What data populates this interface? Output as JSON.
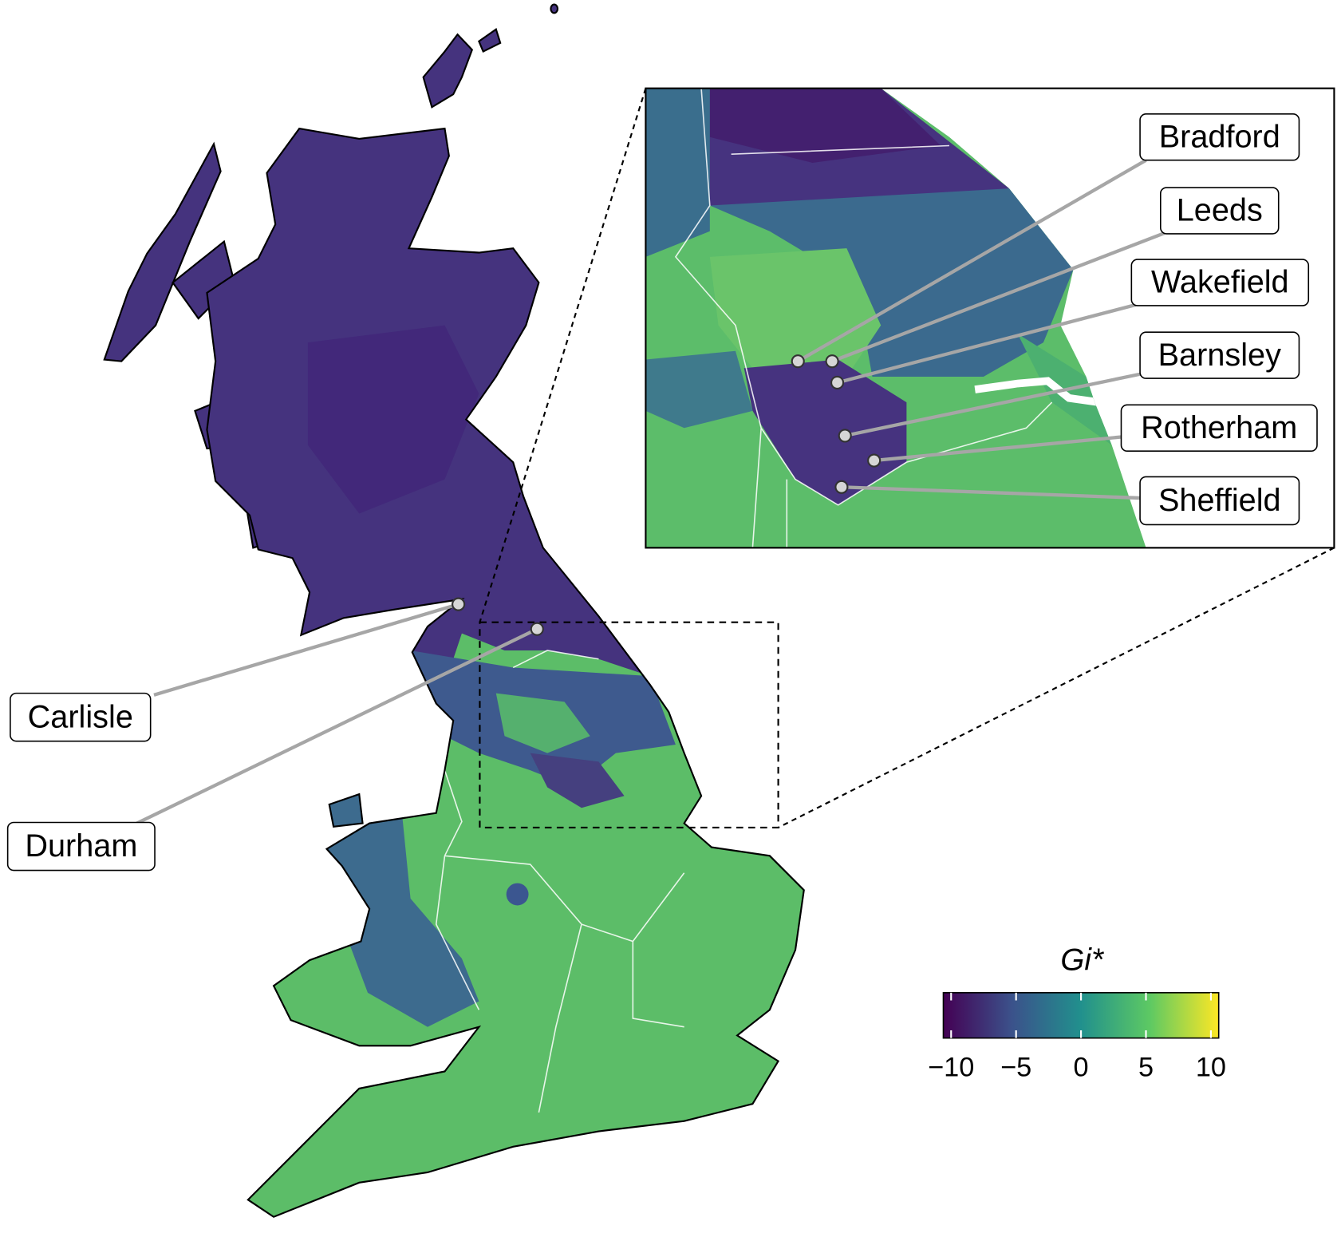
{
  "map": {
    "labels": [
      "Carlisle",
      "Durham"
    ]
  },
  "inset": {
    "labels": [
      "Bradford",
      "Leeds",
      "Wakefield",
      "Barnsley",
      "Rotherham",
      "Sheffield"
    ]
  },
  "legend": {
    "title": "Gi*",
    "lim": [
      -10.6,
      10.6
    ],
    "ticks": [
      {
        "value": -10,
        "label": "−10"
      },
      {
        "value": -5,
        "label": "−5"
      },
      0,
      5,
      10
    ],
    "colors": [
      "#440154",
      "#3b528b",
      "#21908d",
      "#5dc963",
      "#fde725"
    ]
  }
}
